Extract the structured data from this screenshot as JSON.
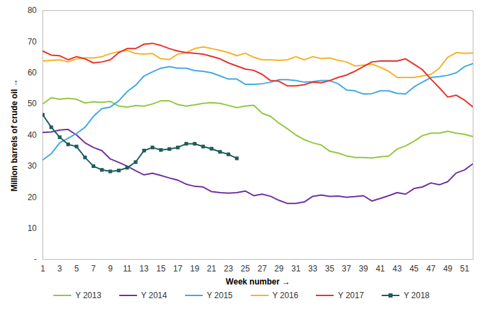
{
  "chart_data": {
    "type": "line",
    "x_label": "Week number",
    "y_label": "Million barrels of crude oil",
    "x": [
      1,
      2,
      3,
      4,
      5,
      6,
      7,
      8,
      9,
      10,
      11,
      12,
      13,
      14,
      15,
      16,
      17,
      18,
      19,
      20,
      21,
      22,
      23,
      24,
      25,
      26,
      27,
      28,
      29,
      30,
      31,
      32,
      33,
      34,
      35,
      36,
      37,
      38,
      39,
      40,
      41,
      42,
      43,
      44,
      45,
      46,
      47,
      48,
      49,
      50,
      51,
      52
    ],
    "xlim": [
      1,
      52
    ],
    "xticks": [
      1,
      3,
      5,
      7,
      9,
      11,
      13,
      15,
      17,
      19,
      21,
      23,
      25,
      27,
      29,
      31,
      33,
      35,
      37,
      39,
      41,
      43,
      45,
      47,
      49,
      51
    ],
    "ylim": [
      0,
      80
    ],
    "yticks": [
      {
        "value": 0,
        "label": "-"
      },
      10,
      20,
      30,
      40,
      50,
      60,
      70,
      80
    ],
    "grid": false,
    "legend": "bottom",
    "series": [
      {
        "name": "Y 2013",
        "color": "#92c83e",
        "values": [
          50,
          52,
          51.5,
          51.8,
          51.5,
          50.3,
          50.7,
          50.5,
          50.8,
          49.3,
          49,
          49.5,
          49.3,
          50,
          51,
          51,
          49.8,
          49.3,
          49.7,
          50.2,
          50.4,
          50.2,
          49.5,
          48.8,
          49.3,
          49.6,
          47,
          46,
          43.8,
          42,
          40,
          38.5,
          37.5,
          36.8,
          34.8,
          34.2,
          33.3,
          32.8,
          32.8,
          32.6,
          33,
          33.2,
          35.5,
          36.5,
          38,
          39.8,
          40.6,
          40.6,
          41.2,
          40.6,
          40.2,
          39.5
        ]
      },
      {
        "name": "Y 2014",
        "color": "#7030a0",
        "values": [
          40.8,
          41,
          41.6,
          41.8,
          40,
          37.5,
          36,
          35,
          32.3,
          31.2,
          30,
          28.5,
          27.2,
          27.7,
          27,
          26.2,
          25.5,
          24.2,
          23.5,
          23.3,
          21.8,
          21.5,
          21.3,
          21.5,
          22,
          20.5,
          21,
          20.3,
          19,
          18,
          18,
          18.5,
          20.3,
          20.7,
          20.3,
          20.4,
          20,
          20.2,
          20.5,
          18.8,
          19.6,
          20.5,
          21.5,
          21,
          22.8,
          23.3,
          24.6,
          24,
          25,
          27.8,
          28.8,
          30.8
        ]
      },
      {
        "name": "Y 2015",
        "color": "#41a9e0",
        "values": [
          32,
          34,
          37.5,
          39,
          40.5,
          42.5,
          46,
          48.5,
          49,
          51,
          54,
          56,
          59,
          60.3,
          61.5,
          62,
          61.5,
          61.5,
          60.7,
          60.5,
          60,
          59,
          58,
          58,
          56.3,
          56.3,
          56.5,
          57,
          57.8,
          57.8,
          57.5,
          57,
          57.2,
          57.5,
          57.5,
          56.5,
          54.5,
          54.2,
          53.2,
          53.3,
          54.2,
          54.2,
          53.4,
          53.2,
          55.5,
          57,
          58.5,
          58.8,
          59.2,
          60,
          62,
          63
        ]
      },
      {
        "name": "Y 2016",
        "color": "#f5b324",
        "values": [
          63.8,
          64,
          64.2,
          63.5,
          64.5,
          64.8,
          64.8,
          65.2,
          66.2,
          66.8,
          67.2,
          66.2,
          66,
          66.2,
          64.5,
          64.3,
          66,
          66.5,
          67.8,
          68.3,
          67.8,
          67.2,
          66.5,
          65.5,
          66.3,
          65,
          64.2,
          64.2,
          64,
          64.2,
          65.2,
          64.2,
          65.2,
          64.6,
          64.8,
          64,
          63.5,
          62.2,
          62.5,
          62.8,
          61.8,
          60.5,
          58.5,
          58.5,
          58.5,
          59,
          59.5,
          61.5,
          65,
          66.5,
          66.3,
          66.4
        ]
      },
      {
        "name": "Y 2017",
        "color": "#e8312a",
        "values": [
          67,
          65.7,
          65.5,
          64.2,
          65.2,
          64.5,
          63.2,
          63.5,
          64.2,
          66.5,
          67.8,
          67.8,
          69.2,
          69.5,
          68.8,
          67.8,
          67,
          66.5,
          66.3,
          66,
          65.3,
          64.5,
          63.2,
          62.2,
          61.2,
          60.8,
          59.5,
          57.5,
          57.3,
          55.8,
          55.8,
          56.2,
          57,
          56.8,
          57.5,
          58.5,
          59.3,
          60.5,
          62,
          63.5,
          63.8,
          63.8,
          63.8,
          64.5,
          62.8,
          61,
          58,
          55.2,
          52.2,
          52.8,
          51.2,
          49
        ]
      },
      {
        "name": "Y 2018",
        "color": "#1f5c5c",
        "marker": "square",
        "values": [
          46.5,
          42.5,
          39.3,
          37,
          36.3,
          32.8,
          30,
          28.8,
          28.3,
          28.6,
          29.5,
          31.3,
          35,
          36,
          35.2,
          35.5,
          36,
          37.2,
          37.2,
          36.3,
          35.6,
          34.6,
          33.8,
          32.5,
          null,
          null,
          null,
          null,
          null,
          null,
          null,
          null,
          null,
          null,
          null,
          null,
          null,
          null,
          null,
          null,
          null,
          null,
          null,
          null,
          null,
          null,
          null,
          null,
          null,
          null,
          null,
          null
        ]
      }
    ]
  }
}
